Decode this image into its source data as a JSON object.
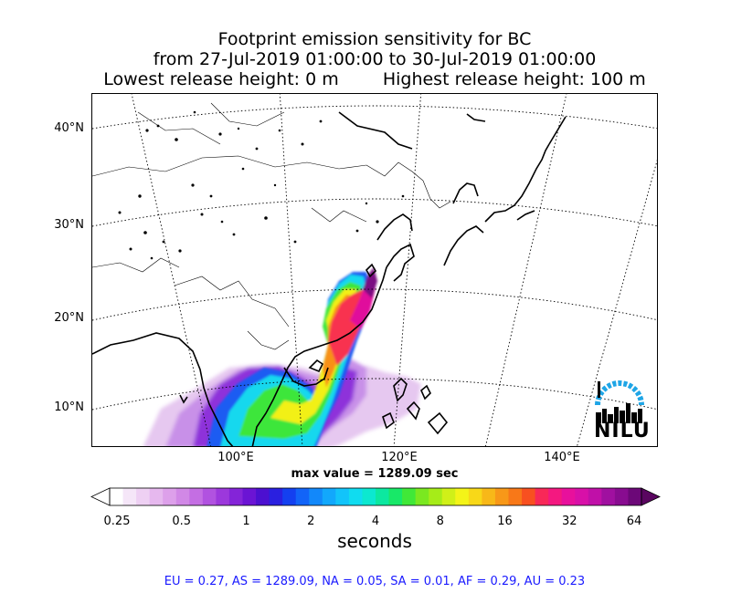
{
  "title": {
    "line1": "Footprint emission sensitivity for BC",
    "line2": "from 27-Jul-2019 01:00:00 to 30-Jul-2019 01:00:00",
    "line3a": "Lowest release height: 0 m",
    "line3b": "Highest release height: 100 m"
  },
  "map": {
    "lat_labels": [
      "40°N",
      "30°N",
      "20°N",
      "10°N"
    ],
    "lon_labels": [
      "100°E",
      "120°E",
      "140°E"
    ],
    "max_value": "max value = 1289.09 sec",
    "logo_text": "NILU",
    "logo_color": "#1ea5e6",
    "coastline_color": "#000000",
    "graticule_color": "#000000"
  },
  "colorbar": {
    "ticks": [
      "0.25",
      "0.5",
      "1",
      "2",
      "4",
      "8",
      "16",
      "32",
      "64"
    ],
    "unit": "seconds",
    "colors": [
      "#ffffff",
      "#f5e6f8",
      "#eed0f3",
      "#e6b8ee",
      "#dda0ea",
      "#d188e6",
      "#c46ee3",
      "#b152e0",
      "#9c38dc",
      "#8424d8",
      "#6b14d4",
      "#4c10d0",
      "#2a20e0",
      "#1440f0",
      "#1264f8",
      "#1288fa",
      "#12a8fc",
      "#12c4fa",
      "#10dcf0",
      "#0ce8d0",
      "#0ce8a0",
      "#18e868",
      "#40e838",
      "#7ae820",
      "#a6ec18",
      "#d0f018",
      "#f4f418",
      "#f8d818",
      "#f8b818",
      "#f89818",
      "#f87818",
      "#f85020",
      "#f82858",
      "#f41880",
      "#e8109c",
      "#d810a8",
      "#c010a8",
      "#a010a0",
      "#880c90",
      "#6c0878"
    ]
  },
  "footer": "EU = 0.27,  AS = 1289.09,  NA = 0.05,  SA = 0.01,  AF = 0.29,  AU = 0.23"
}
